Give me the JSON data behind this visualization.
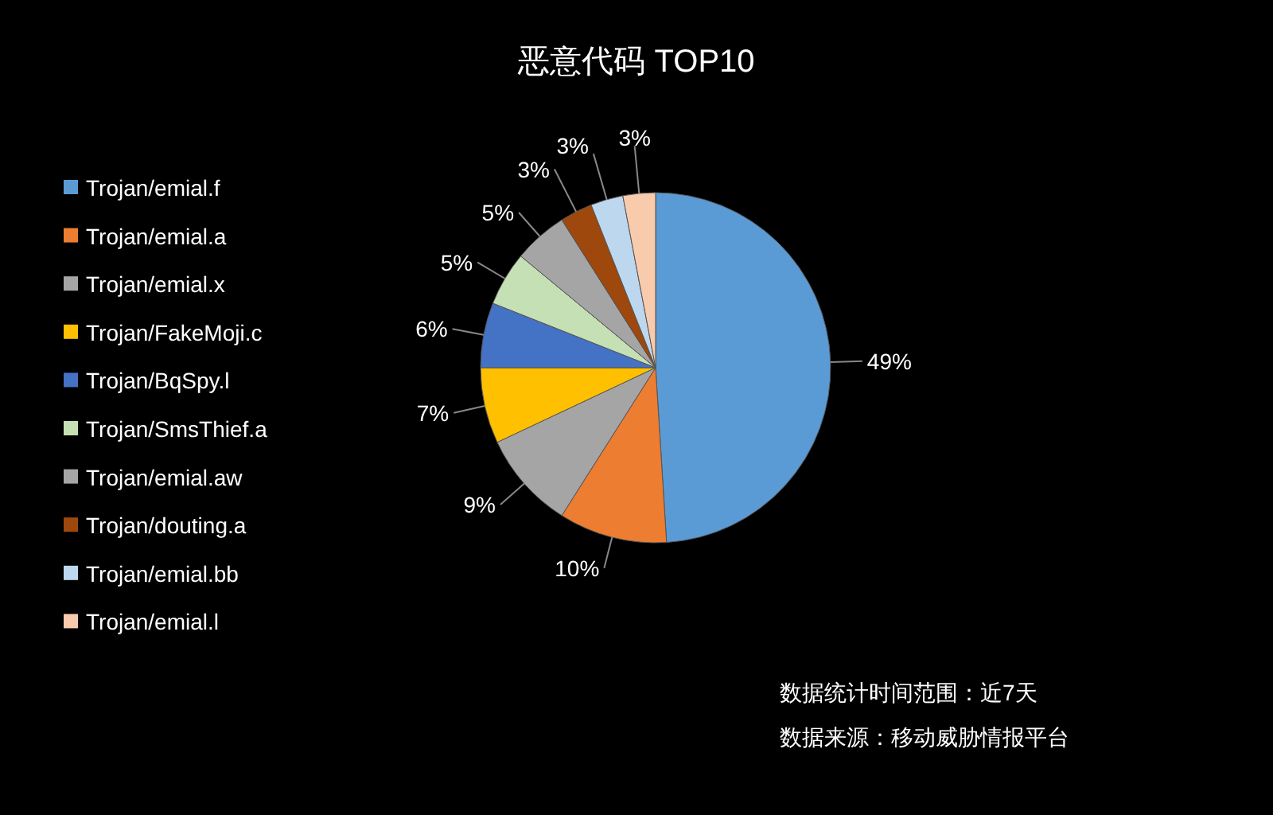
{
  "chart_data": {
    "type": "pie",
    "title": "恶意代码 TOP10",
    "categories": [
      "Trojan/emial.f",
      "Trojan/emial.a",
      "Trojan/emial.x",
      "Trojan/FakeMoji.c",
      "Trojan/BqSpy.l",
      "Trojan/SmsThief.a",
      "Trojan/emial.aw",
      "Trojan/douting.a",
      "Trojan/emial.bb",
      "Trojan/emial.l"
    ],
    "values": [
      49,
      10,
      9,
      7,
      6,
      5,
      5,
      3,
      3,
      3
    ],
    "colors": [
      "#5b9bd5",
      "#ed7d31",
      "#a5a5a5",
      "#ffc000",
      "#4472c4",
      "#c5e0b4",
      "#a5a5a5",
      "#9e480e",
      "#bdd7ee",
      "#f8cbad"
    ],
    "value_labels": [
      "49%",
      "10%",
      "9%",
      "7%",
      "6%",
      "5%",
      "5%",
      "3%",
      "3%",
      "3%"
    ],
    "legend": "left",
    "annotations": [
      "数据统计时间范围：近7天",
      "数据来源：移动威胁情报平台"
    ]
  }
}
